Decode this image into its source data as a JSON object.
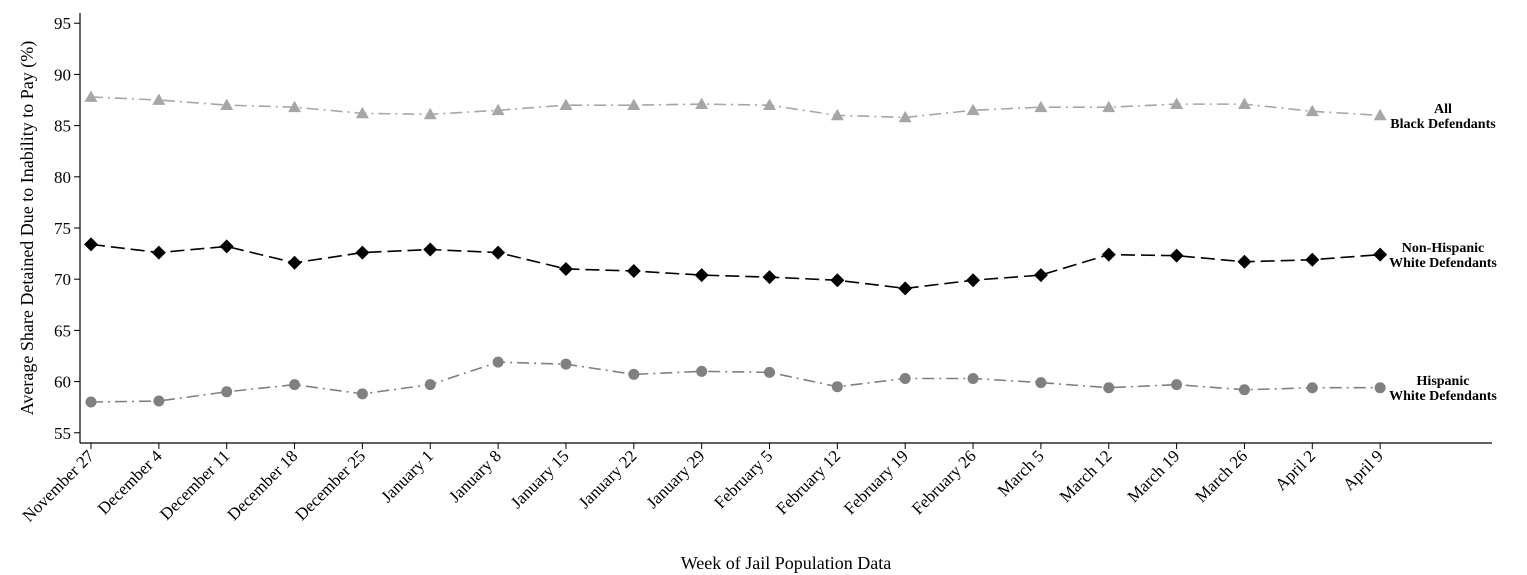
{
  "chart_data": {
    "type": "line",
    "title": "",
    "xlabel": "Week of Jail Population Data",
    "ylabel": "Average Share Detained Due to Inability to Pay (%)",
    "ylim": [
      54,
      96
    ],
    "yticks": [
      55,
      60,
      65,
      70,
      75,
      80,
      85,
      90,
      95
    ],
    "grid": false,
    "categories": [
      "November 27",
      "December 4",
      "December 11",
      "December 18",
      "December 25",
      "January 1",
      "January 8",
      "January 15",
      "January 22",
      "January 29",
      "February 5",
      "February 12",
      "February 19",
      "February 26",
      "March 5",
      "March 12",
      "March 19",
      "March 26",
      "April 2",
      "April 9"
    ],
    "series": [
      {
        "name_lines": [
          "All",
          "Black Defendants"
        ],
        "marker": "triangle",
        "color": "#a6a6a6",
        "dash": "dashdot",
        "values": [
          87.8,
          87.5,
          87.0,
          86.8,
          86.2,
          86.1,
          86.5,
          87.0,
          87.0,
          87.1,
          87.0,
          86.0,
          85.8,
          86.5,
          86.8,
          86.8,
          87.1,
          87.1,
          86.4,
          86.0
        ]
      },
      {
        "name_lines": [
          "Non-Hispanic",
          "White Defendants"
        ],
        "marker": "diamond",
        "color": "#000000",
        "dash": "dashed",
        "values": [
          73.4,
          72.6,
          73.2,
          71.6,
          72.6,
          72.9,
          72.6,
          71.0,
          70.8,
          70.4,
          70.2,
          69.9,
          69.1,
          69.9,
          70.4,
          72.4,
          72.3,
          71.7,
          71.9,
          72.4
        ]
      },
      {
        "name_lines": [
          "Hispanic",
          "White Defendants"
        ],
        "marker": "circle",
        "color": "#808080",
        "dash": "dashdot",
        "values": [
          58.0,
          58.1,
          59.0,
          59.7,
          58.8,
          59.7,
          61.9,
          61.7,
          60.7,
          61.0,
          60.9,
          59.5,
          60.3,
          60.3,
          59.9,
          59.4,
          59.7,
          59.2,
          59.4,
          59.4
        ]
      }
    ]
  }
}
